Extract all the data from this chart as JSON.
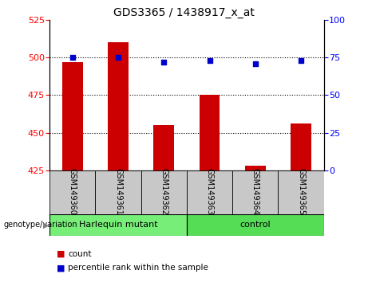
{
  "title": "GDS3365 / 1438917_x_at",
  "samples": [
    "GSM149360",
    "GSM149361",
    "GSM149362",
    "GSM149363",
    "GSM149364",
    "GSM149365"
  ],
  "count_values": [
    497,
    510,
    455,
    475,
    428,
    456
  ],
  "percentile_values": [
    75,
    75,
    72,
    73,
    71,
    73
  ],
  "ylim_left": [
    425,
    525
  ],
  "ylim_right": [
    0,
    100
  ],
  "yticks_left": [
    425,
    450,
    475,
    500,
    525
  ],
  "yticks_right": [
    0,
    25,
    50,
    75,
    100
  ],
  "bar_color": "#cc0000",
  "dot_color": "#0000cc",
  "bar_bottom": 425,
  "groups": [
    {
      "label": "Harlequin mutant",
      "color": "#77ee77",
      "start": 0,
      "end": 3
    },
    {
      "label": "control",
      "color": "#55dd55",
      "start": 3,
      "end": 6
    }
  ],
  "group_label": "genotype/variation",
  "legend_items": [
    {
      "label": "count",
      "color": "#cc0000"
    },
    {
      "label": "percentile rank within the sample",
      "color": "#0000cc"
    }
  ],
  "sample_box_color": "#c8c8c8",
  "title_fontsize": 10,
  "tick_fontsize": 8,
  "bar_width": 0.45
}
